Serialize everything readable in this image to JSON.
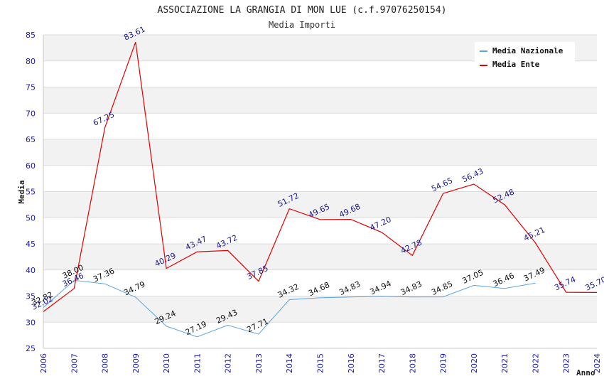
{
  "chart_data": {
    "type": "line",
    "title": "ASSOCIAZIONE LA GRANGIA DI MON LUE (c.f.97076250154)",
    "subtitle": "Media Importi",
    "xlabel": "Anno",
    "ylabel": "Media",
    "ylim": [
      25,
      85
    ],
    "yticks": [
      "25",
      "30",
      "35",
      "40",
      "45",
      "50",
      "55",
      "60",
      "65",
      "70",
      "75",
      "80",
      "85"
    ],
    "x": [
      "2006",
      "2007",
      "2008",
      "2009",
      "2010",
      "2011",
      "2012",
      "2013",
      "2014",
      "2015",
      "2016",
      "2017",
      "2018",
      "2019",
      "2020",
      "2021",
      "2022",
      "2023",
      "2024"
    ],
    "grid": "horizontal-bands",
    "legend_position": "top-right",
    "series": [
      {
        "name": "Media Nazionale",
        "color": "#5aa6e0",
        "values": [
          32.82,
          38.0,
          37.36,
          34.79,
          29.24,
          27.19,
          29.43,
          27.71,
          34.32,
          34.68,
          34.83,
          34.94,
          34.83,
          34.85,
          37.05,
          36.46,
          37.49,
          null,
          null
        ],
        "labels": [
          "32.82",
          "38.00",
          "37.36",
          "34.79",
          "29.24",
          "27.19",
          "29.43",
          "27.71",
          "34.32",
          "34.68",
          "34.83",
          "34.94",
          "34.83",
          "34.85",
          "37.05",
          "36.46",
          "37.49",
          null,
          null
        ]
      },
      {
        "name": "Media Ente",
        "color": "#e00000",
        "values": [
          32.02,
          36.46,
          67.25,
          83.61,
          40.29,
          43.47,
          43.72,
          37.85,
          51.72,
          49.65,
          49.68,
          47.2,
          42.78,
          54.65,
          56.43,
          52.48,
          45.21,
          35.74,
          35.7
        ],
        "labels": [
          "32.02",
          "36.46",
          "67.25",
          "83.61",
          "40.29",
          "43.47",
          "43.72",
          "37.85",
          "51.72",
          "49.65",
          "49.68",
          "47.20",
          "42.78",
          "54.65",
          "56.43",
          "52.48",
          "45.21",
          "35.74",
          "35.70"
        ]
      }
    ]
  }
}
